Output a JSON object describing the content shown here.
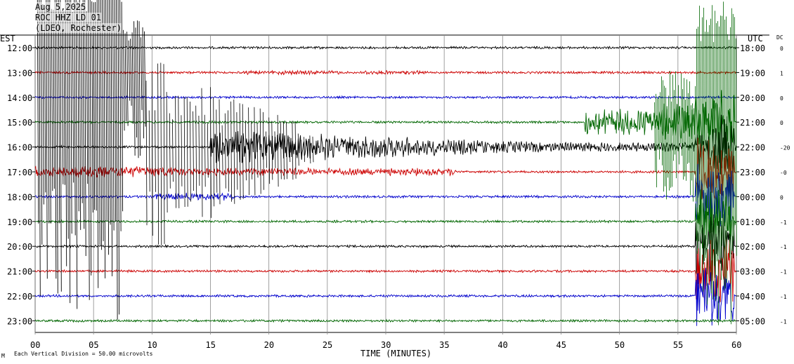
{
  "header": {
    "date": "Aug 5,2025",
    "station": "ROC HHZ LD 01",
    "location": "(LDEO, Rochester)"
  },
  "footer": {
    "scale_note": "Each Vertical Division =   50.00 microvolts",
    "mark": "M"
  },
  "chart_data": {
    "type": "line",
    "subtype": "helicorder",
    "title": "",
    "xlabel": "TIME (MINUTES)",
    "x_ticks": [
      "00",
      "05",
      "10",
      "15",
      "20",
      "25",
      "30",
      "35",
      "40",
      "45",
      "50",
      "55",
      "60"
    ],
    "xlim": [
      0,
      60
    ],
    "left_axis_title": "EST",
    "right_axis_title": "UTC",
    "dc_title": "DC",
    "grid": true,
    "rows": [
      {
        "est": "12:00",
        "utc": "18:00",
        "dc": "0",
        "color": "#000000"
      },
      {
        "est": "13:00",
        "utc": "19:00",
        "dc": "1",
        "color": "#cc0000"
      },
      {
        "est": "14:00",
        "utc": "20:00",
        "dc": "0",
        "color": "#0000cc"
      },
      {
        "est": "15:00",
        "utc": "21:00",
        "dc": "0",
        "color": "#006600"
      },
      {
        "est": "16:00",
        "utc": "22:00",
        "dc": "-20",
        "color": "#000000"
      },
      {
        "est": "17:00",
        "utc": "23:00",
        "dc": "-0",
        "color": "#cc0000"
      },
      {
        "est": "18:00",
        "utc": "00:00",
        "dc": "0",
        "color": "#0000cc"
      },
      {
        "est": "19:00",
        "utc": "01:00",
        "dc": "-1",
        "color": "#006600"
      },
      {
        "est": "20:00",
        "utc": "02:00",
        "dc": "-1",
        "color": "#000000"
      },
      {
        "est": "21:00",
        "utc": "03:00",
        "dc": "-1",
        "color": "#cc0000"
      },
      {
        "est": "22:00",
        "utc": "04:00",
        "dc": "-1",
        "color": "#0000cc"
      },
      {
        "est": "23:00",
        "utc": "05:00",
        "dc": "-1",
        "color": "#006600"
      }
    ]
  }
}
